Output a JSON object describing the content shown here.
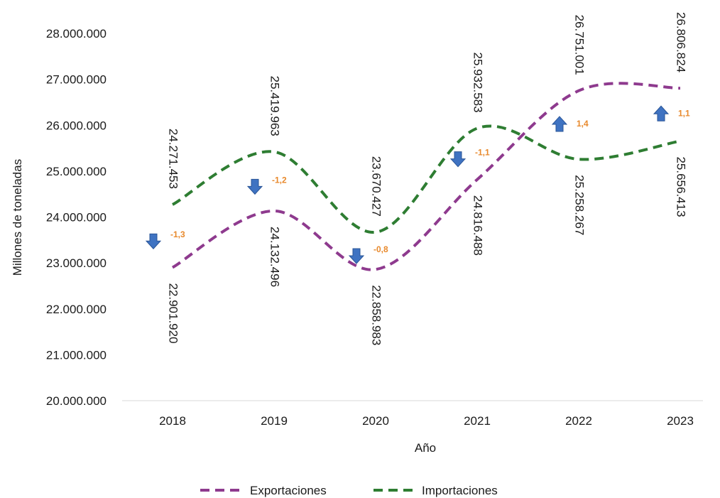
{
  "chart_data": {
    "type": "line",
    "xlabel": "Año",
    "ylabel": "Millones de toneladas",
    "ylim": [
      20000000,
      28000000
    ],
    "yticks": [
      {
        "value": 20000000,
        "label": "20.000.000"
      },
      {
        "value": 21000000,
        "label": "21.000.000"
      },
      {
        "value": 22000000,
        "label": "22.000.000"
      },
      {
        "value": 23000000,
        "label": "23.000.000"
      },
      {
        "value": 24000000,
        "label": "24.000.000"
      },
      {
        "value": 25000000,
        "label": "25.000.000"
      },
      {
        "value": 26000000,
        "label": "26.000.000"
      },
      {
        "value": 27000000,
        "label": "27.000.000"
      },
      {
        "value": 28000000,
        "label": "28.000.000"
      }
    ],
    "categories": [
      "2018",
      "2019",
      "2020",
      "2021",
      "2022",
      "2023"
    ],
    "series": [
      {
        "name": "Exportaciones",
        "color": "#8E3A8E",
        "dash": "dashed",
        "values": [
          22901920,
          24132496,
          22858983,
          24816488,
          26751001,
          26806824
        ],
        "labels": [
          "22.901.920",
          "24.132.496",
          "22.858.983",
          "24.816.488",
          "26.751.001",
          "26.806.824"
        ]
      },
      {
        "name": "Importaciones",
        "color": "#2E7D32",
        "dash": "dashed",
        "values": [
          24271453,
          25419963,
          23670427,
          25932583,
          25258267,
          25656413
        ],
        "labels": [
          "24.271.453",
          "25.419.963",
          "23.670.427",
          "25.932.583",
          "25.258.267",
          "25.656.413"
        ]
      }
    ],
    "annotations": [
      {
        "category": "2018",
        "change": "-1,3",
        "direction": "down"
      },
      {
        "category": "2019",
        "change": "-1,2",
        "direction": "down"
      },
      {
        "category": "2020",
        "change": "-0,8",
        "direction": "down"
      },
      {
        "category": "2021",
        "change": "-1,1",
        "direction": "down"
      },
      {
        "category": "2022",
        "change": "1,4",
        "direction": "up"
      },
      {
        "category": "2023",
        "change": "1,1",
        "direction": "up"
      }
    ],
    "arrow_color": "#3F73C2",
    "change_color": "#E8892C",
    "grid": false,
    "legend_position": "bottom"
  }
}
